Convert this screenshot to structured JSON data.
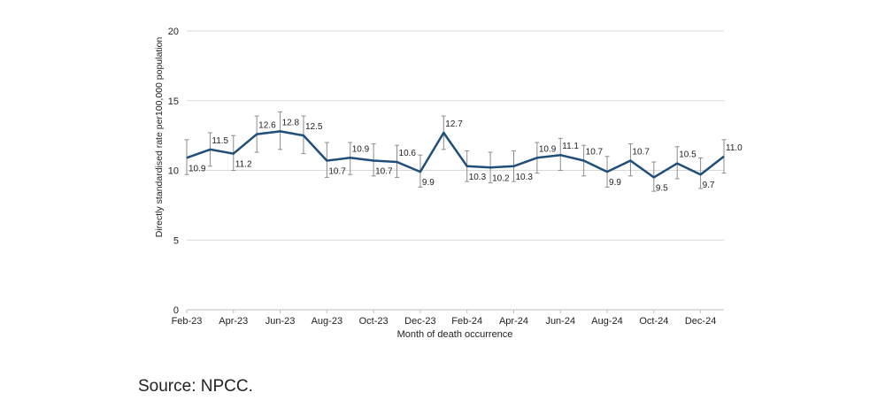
{
  "source": "Source: NPCC.",
  "chart_data": {
    "type": "line",
    "xlabel": "Month of death occurrence",
    "ylabel": "Directly standardised rate per100,000 population",
    "ylim": [
      0,
      20
    ],
    "yticks": [
      0,
      5,
      10,
      15,
      20
    ],
    "grid": true,
    "error_bars": true,
    "categories": [
      "Feb-23",
      "Mar-23",
      "Apr-23",
      "May-23",
      "Jun-23",
      "Jul-23",
      "Aug-23",
      "Sep-23",
      "Oct-23",
      "Nov-23",
      "Dec-23",
      "Jan-24",
      "Feb-24",
      "Mar-24",
      "Apr-24",
      "May-24",
      "Jun-24",
      "Jul-24",
      "Aug-24",
      "Sep-24",
      "Oct-24",
      "Nov-24",
      "Dec-24",
      "Jan-25"
    ],
    "tick_labels": [
      "Feb-23",
      "Apr-23",
      "Jun-23",
      "Aug-23",
      "Oct-23",
      "Dec-23",
      "Feb-24",
      "Apr-24",
      "Jun-24",
      "Aug-24",
      "Oct-24",
      "Dec-24"
    ],
    "values": [
      10.9,
      11.5,
      11.2,
      12.6,
      12.8,
      12.5,
      10.7,
      10.9,
      10.7,
      10.6,
      9.9,
      12.7,
      10.3,
      10.2,
      10.3,
      10.9,
      11.1,
      10.7,
      9.9,
      10.7,
      9.5,
      10.5,
      9.7,
      11.0
    ],
    "data_labels": [
      "10.9",
      "11.5",
      "11.2",
      "12.6",
      "12.8",
      "12.5",
      "10.7",
      "10.9",
      "10.7",
      "10.6",
      "9.9",
      "12.7",
      "10.3",
      "10.2",
      "10.3",
      "10.9",
      "11.1",
      "10.7",
      "9.9",
      "10.7",
      "9.5",
      "10.5",
      "9.7",
      "11.0"
    ],
    "lower": [
      9.7,
      10.3,
      10.0,
      11.3,
      11.5,
      11.2,
      9.5,
      9.7,
      9.6,
      9.5,
      8.8,
      11.5,
      9.2,
      9.1,
      9.2,
      9.8,
      10.0,
      9.6,
      8.8,
      9.6,
      8.5,
      9.4,
      8.7,
      9.8
    ],
    "upper": [
      12.2,
      12.7,
      12.5,
      13.9,
      14.2,
      13.9,
      12.0,
      12.0,
      11.9,
      11.8,
      11.1,
      13.9,
      11.4,
      11.3,
      11.4,
      12.0,
      12.3,
      11.8,
      11.0,
      11.9,
      10.6,
      11.7,
      10.9,
      12.2
    ],
    "colors": {
      "line": "#1f4e79",
      "error": "#8c8c8c",
      "grid": "#d9d9d9",
      "axis": "#bfbfbf"
    }
  }
}
